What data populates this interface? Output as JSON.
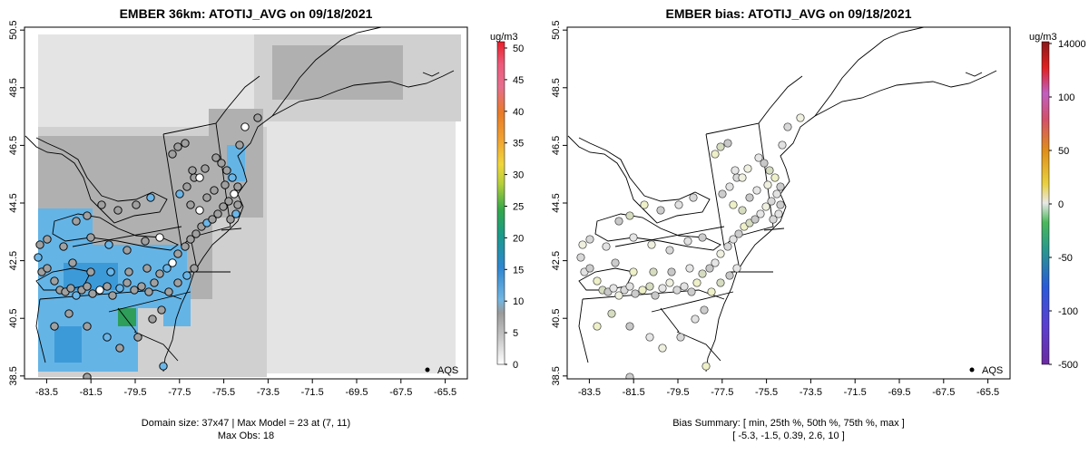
{
  "chart_data": [
    {
      "type": "heatmap",
      "title": "EMBER 36km: ATOTIJ_AVG on 09/18/2021",
      "xlabel": "",
      "ylabel": "",
      "xlim": [
        -84.5,
        -64.5
      ],
      "ylim": [
        38.4,
        50.6
      ],
      "x_ticks": [
        "-83.5",
        "-81.5",
        "-79.5",
        "-77.5",
        "-75.5",
        "-73.5",
        "-71.5",
        "-69.5",
        "-67.5",
        "-65.5"
      ],
      "y_ticks": [
        "38.5",
        "40.5",
        "42.5",
        "44.5",
        "46.5",
        "48.5",
        "50.5"
      ],
      "colorbar": {
        "unit": "ug/m3",
        "ticks": [
          "0",
          "5",
          "10",
          "15",
          "20",
          "25",
          "30",
          "35",
          "40",
          "45",
          "50"
        ],
        "range": [
          0,
          51
        ]
      },
      "legend": "AQS",
      "footer": [
        "Domain size: 37x47 | Max Model = 23 at (7, 11)",
        "Max Obs: 18"
      ],
      "domain_size": "37x47",
      "max_model": 23,
      "max_obs": 18
    },
    {
      "type": "scatter",
      "title": "EMBER bias: ATOTIJ_AVG on 09/18/2021",
      "xlabel": "",
      "ylabel": "",
      "xlim": [
        -84.5,
        -64.5
      ],
      "ylim": [
        38.4,
        50.6
      ],
      "x_ticks": [
        "-83.5",
        "-81.5",
        "-79.5",
        "-77.5",
        "-75.5",
        "-73.5",
        "-71.5",
        "-69.5",
        "-67.5",
        "-65.5"
      ],
      "y_ticks": [
        "38.5",
        "40.5",
        "42.5",
        "44.5",
        "46.5",
        "48.5",
        "50.5"
      ],
      "colorbar": {
        "unit": "ug/m3",
        "ticks": [
          "14000",
          "100",
          "50",
          "0",
          "-50",
          "-100",
          "-500"
        ]
      },
      "legend": "AQS",
      "footer": [
        "Bias Summary: [ min, 25th %, 50th %, 75th %, max ]",
        "[ -5.3,   -1.5,   0.39,   2.6,   10 ]"
      ],
      "bias_summary": {
        "min": -5.3,
        "p25": -1.5,
        "p50": 0.39,
        "p75": 2.6,
        "max": 10
      }
    }
  ],
  "colors": {
    "land_outline": "#000000",
    "ocean_gray": "#e4e4e4",
    "low_gray": "#d0d0d0",
    "mid_gray": "#b0b0b0",
    "dark_gray": "#9a9a9a",
    "light_blue": "#64b4e6",
    "mid_blue": "#3d9ad8",
    "green": "#2e9e5a"
  }
}
